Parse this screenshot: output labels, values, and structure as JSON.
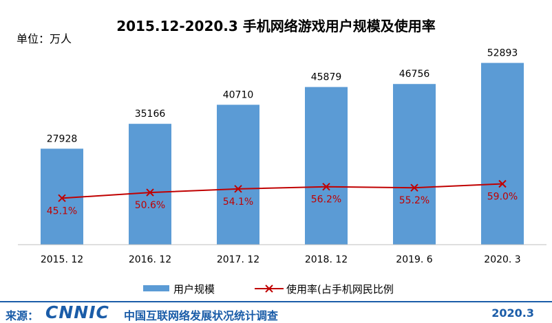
{
  "title": "2015.12-2020.3 手机网络游戏用户规模及使用率",
  "unit": "单位：万人",
  "footer": {
    "source_label": "来源：",
    "logo": "CNNIC",
    "org": "中国互联网络发展状况统计调查",
    "date": "2020.3"
  },
  "colors": {
    "bar": "#5b9bd5",
    "line": "#c00000",
    "line_label": "#c00000",
    "footer": "#1a5ca8"
  },
  "chart_data": {
    "type": "bar",
    "categories": [
      "2015. 12",
      "2016. 12",
      "2017. 12",
      "2018. 12",
      "2019. 6",
      "2020. 3"
    ],
    "series": [
      {
        "name": "用户规模",
        "type": "bar",
        "values": [
          27928,
          35166,
          40710,
          45879,
          46756,
          52893
        ]
      },
      {
        "name": "使用率(占手机网民比例",
        "type": "line",
        "values": [
          45.1,
          50.6,
          54.1,
          56.2,
          55.2,
          59.0
        ],
        "labels": [
          "45.1%",
          "50.6%",
          "54.1%",
          "56.2%",
          "55.2%",
          "59.0%"
        ]
      }
    ],
    "bar_labels": [
      "27928",
      "35166",
      "40710",
      "45879",
      "46756",
      "52893"
    ],
    "ylim": [
      0,
      60000
    ],
    "y2lim": [
      0,
      200
    ],
    "legend": "bottom",
    "grid": false
  }
}
